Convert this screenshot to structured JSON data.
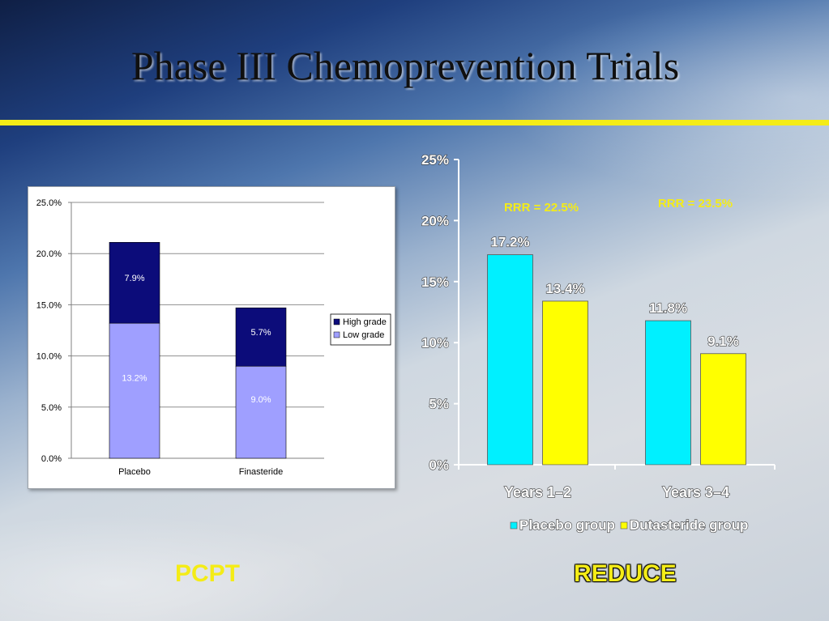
{
  "slide": {
    "title": "Phase III Chemoprevention Trials",
    "caption_left": "PCPT",
    "caption_right": "REDUCE"
  },
  "colors": {
    "title_rule": "#f4ec17",
    "high_grade": "#0c0c7a",
    "low_grade": "#9f9fff",
    "placebo_group": "#00f0ff",
    "dutasteride_group": "#ffff00",
    "rrr_text": "#f4ec17"
  },
  "chart_data": [
    {
      "type": "bar",
      "stacked": true,
      "categories": [
        "Placebo",
        "Finasteride"
      ],
      "series": [
        {
          "name": "Low grade",
          "values": [
            13.2,
            9.0
          ],
          "labels": [
            "13.2%",
            "9.0%"
          ]
        },
        {
          "name": "High grade",
          "values": [
            7.9,
            5.7
          ],
          "labels": [
            "7.9%",
            "5.7%"
          ]
        }
      ],
      "legend_order": [
        "High grade",
        "Low grade"
      ],
      "legend": "right",
      "ylim": [
        0,
        25
      ],
      "yticks": [
        "0.0%",
        "5.0%",
        "10.0%",
        "15.0%",
        "20.0%",
        "25.0%"
      ],
      "grid": true
    },
    {
      "type": "bar",
      "categories": [
        "Years 1–2",
        "Years 3–4"
      ],
      "series": [
        {
          "name": "Placebo group",
          "values": [
            17.2,
            11.8
          ],
          "labels": [
            "17.2%",
            "11.8%"
          ]
        },
        {
          "name": "Dutasteride group",
          "values": [
            13.4,
            9.1
          ],
          "labels": [
            "13.4%",
            "9.1%"
          ]
        }
      ],
      "annotations": [
        "RRR = 22.5%",
        "RRR = 23.5%"
      ],
      "legend": "bottom",
      "ylim": [
        0,
        25
      ],
      "yticks": [
        "0%",
        "5%",
        "10%",
        "15%",
        "20%",
        "25%"
      ],
      "grid": false
    }
  ]
}
